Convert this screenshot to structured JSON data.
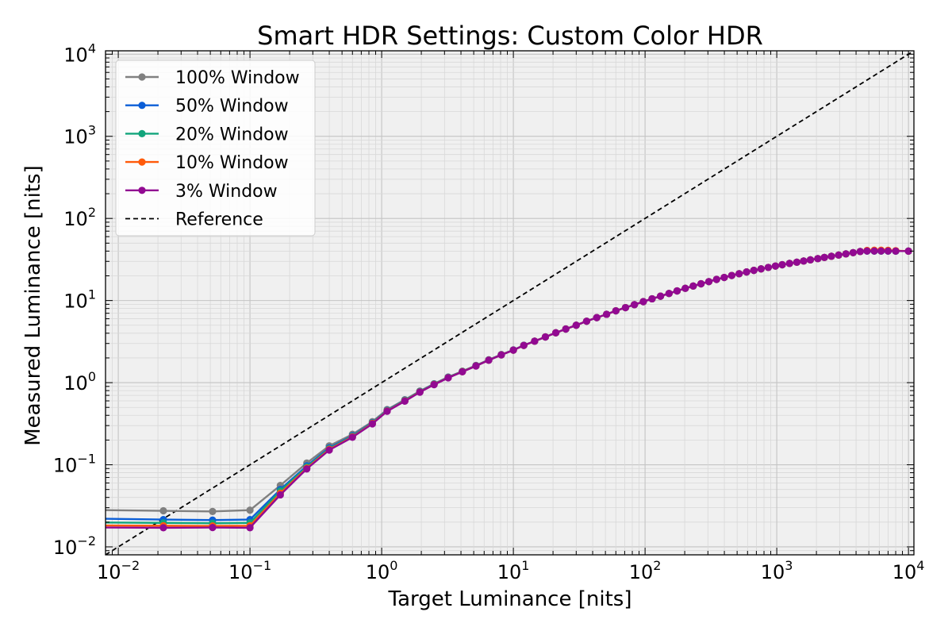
{
  "chart_data": {
    "type": "line",
    "title": "Smart HDR Settings: Custom Color HDR",
    "xlabel": "Target Luminance [nits]",
    "ylabel": "Measured Luminance [nits]",
    "xscale": "log",
    "yscale": "log",
    "xlim": [
      0.008,
      11000
    ],
    "ylim": [
      0.008,
      11000
    ],
    "grid": true,
    "legend_position": "top-left",
    "x_ticks": [
      {
        "base": "10",
        "exp": "−2",
        "value": 0.01
      },
      {
        "base": "10",
        "exp": "−1",
        "value": 0.1
      },
      {
        "base": "10",
        "exp": "0",
        "value": 1
      },
      {
        "base": "10",
        "exp": "1",
        "value": 10
      },
      {
        "base": "10",
        "exp": "2",
        "value": 100
      },
      {
        "base": "10",
        "exp": "3",
        "value": 1000
      },
      {
        "base": "10",
        "exp": "4",
        "value": 10000
      }
    ],
    "y_ticks": [
      {
        "base": "10",
        "exp": "−2",
        "value": 0.01
      },
      {
        "base": "10",
        "exp": "−1",
        "value": 0.1
      },
      {
        "base": "10",
        "exp": "0",
        "value": 1
      },
      {
        "base": "10",
        "exp": "1",
        "value": 10
      },
      {
        "base": "10",
        "exp": "2",
        "value": 100
      },
      {
        "base": "10",
        "exp": "3",
        "value": 1000
      },
      {
        "base": "10",
        "exp": "4",
        "value": 10000
      }
    ],
    "x": [
      0,
      0.022,
      0.052,
      0.1,
      0.17,
      0.27,
      0.4,
      0.6,
      0.85,
      1.1,
      1.5,
      1.95,
      2.5,
      3.2,
      4.1,
      5.2,
      6.5,
      8.1,
      10,
      12,
      14.5,
      17.5,
      21,
      25,
      30,
      36,
      43,
      51,
      60,
      71,
      83,
      97,
      113,
      131,
      152,
      175,
      202,
      232,
      266,
      305,
      349,
      399,
      455,
      518,
      590,
      670,
      760,
      862,
      977,
      1100,
      1250,
      1420,
      1600,
      1800,
      2050,
      2300,
      2600,
      2950,
      3350,
      3800,
      4300,
      4850,
      5500,
      6200,
      7000,
      8000,
      10000
    ],
    "series": [
      {
        "name": "100% Window",
        "color": "#808080",
        "values": [
          0.028,
          0.0275,
          0.027,
          0.028,
          0.056,
          0.105,
          0.17,
          0.235,
          0.335,
          0.47,
          0.62,
          0.79,
          0.97,
          1.17,
          1.38,
          1.62,
          1.9,
          2.2,
          2.5,
          2.85,
          3.2,
          3.6,
          4.05,
          4.5,
          5.0,
          5.6,
          6.2,
          6.8,
          7.5,
          8.2,
          8.9,
          9.7,
          10.5,
          11.3,
          12.2,
          13.1,
          14.1,
          15.0,
          16.0,
          17.0,
          18.1,
          19.1,
          20.2,
          21.2,
          22.3,
          23.3,
          24.3,
          25.3,
          26.3,
          27.3,
          28.3,
          29.3,
          30.3,
          31.3,
          32.4,
          33.5,
          34.6,
          35.8,
          37.0,
          38.3,
          39.5,
          40.1,
          40.1,
          40.1,
          40.1,
          40.0,
          40.0
        ]
      },
      {
        "name": "50% Window",
        "color": "#0b5ed7",
        "values": [
          0.022,
          0.0215,
          0.0212,
          0.0215,
          0.05,
          0.097,
          0.161,
          0.226,
          0.326,
          0.46,
          0.61,
          0.78,
          0.96,
          1.16,
          1.37,
          1.61,
          1.89,
          2.19,
          2.5,
          2.85,
          3.2,
          3.6,
          4.05,
          4.5,
          5.0,
          5.6,
          6.2,
          6.8,
          7.5,
          8.2,
          8.9,
          9.7,
          10.5,
          11.3,
          12.2,
          13.1,
          14.1,
          15.0,
          16.0,
          17.0,
          18.1,
          19.1,
          20.2,
          21.2,
          22.3,
          23.3,
          24.3,
          25.3,
          26.3,
          27.3,
          28.3,
          29.3,
          30.3,
          31.3,
          32.4,
          33.5,
          34.6,
          35.8,
          37.0,
          38.3,
          39.5,
          40.1,
          40.1,
          40.1,
          40.1,
          40.0,
          40.0
        ]
      },
      {
        "name": "20% Window",
        "color": "#12a57c",
        "values": [
          0.0198,
          0.0196,
          0.0194,
          0.0196,
          0.048,
          0.094,
          0.157,
          0.222,
          0.322,
          0.455,
          0.605,
          0.775,
          0.955,
          1.155,
          1.365,
          1.6,
          1.88,
          2.18,
          2.49,
          2.84,
          3.2,
          3.6,
          4.05,
          4.5,
          5.0,
          5.6,
          6.2,
          6.8,
          7.5,
          8.2,
          8.9,
          9.7,
          10.5,
          11.3,
          12.2,
          13.1,
          14.1,
          15.0,
          16.0,
          17.0,
          18.1,
          19.1,
          20.2,
          21.2,
          22.3,
          23.3,
          24.3,
          25.3,
          26.3,
          27.3,
          28.3,
          29.3,
          30.3,
          31.3,
          32.4,
          33.5,
          34.6,
          35.8,
          37.0,
          38.3,
          39.5,
          40.1,
          40.1,
          40.1,
          40.1,
          40.0,
          40.0
        ]
      },
      {
        "name": "10% Window",
        "color": "#ff5a0a",
        "values": [
          0.0182,
          0.0181,
          0.018,
          0.0181,
          0.045,
          0.091,
          0.154,
          0.219,
          0.319,
          0.452,
          0.6,
          0.77,
          0.95,
          1.15,
          1.36,
          1.6,
          1.88,
          2.18,
          2.49,
          2.84,
          3.2,
          3.6,
          4.05,
          4.5,
          5.0,
          5.6,
          6.2,
          6.8,
          7.5,
          8.2,
          8.9,
          9.7,
          10.5,
          11.3,
          12.2,
          13.1,
          14.1,
          15.0,
          16.0,
          17.0,
          18.1,
          19.1,
          20.2,
          21.2,
          22.3,
          23.3,
          24.3,
          25.3,
          26.3,
          27.3,
          28.3,
          29.3,
          30.3,
          31.3,
          32.4,
          33.5,
          34.6,
          35.8,
          37.0,
          38.3,
          39.5,
          40.8,
          41.0,
          41.0,
          40.9,
          40.5,
          40.0
        ]
      },
      {
        "name": "3% Window",
        "color": "#920a92",
        "values": [
          0.0172,
          0.0171,
          0.0172,
          0.0171,
          0.043,
          0.089,
          0.151,
          0.216,
          0.315,
          0.448,
          0.595,
          0.765,
          0.945,
          1.145,
          1.355,
          1.595,
          1.875,
          2.175,
          2.49,
          2.84,
          3.2,
          3.6,
          4.05,
          4.5,
          5.0,
          5.6,
          6.2,
          6.8,
          7.5,
          8.2,
          8.9,
          9.7,
          10.5,
          11.3,
          12.2,
          13.1,
          14.1,
          15.0,
          16.0,
          17.0,
          18.1,
          19.1,
          20.2,
          21.2,
          22.3,
          23.3,
          24.3,
          25.3,
          26.3,
          27.3,
          28.3,
          29.3,
          30.3,
          31.3,
          32.4,
          33.5,
          34.6,
          35.8,
          37.0,
          38.3,
          39.5,
          40.1,
          40.1,
          40.1,
          40.1,
          40.0,
          40.0
        ]
      }
    ],
    "reference": {
      "name": "Reference",
      "color": "#000000",
      "dash": "dashed"
    }
  }
}
